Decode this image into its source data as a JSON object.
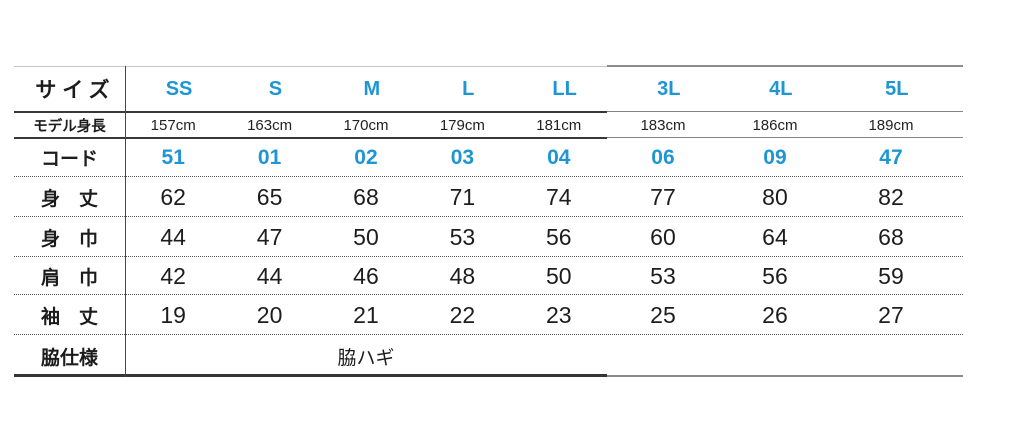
{
  "colors": {
    "accent_blue": "#1e96d4",
    "text_black": "#1c1c1c",
    "line_dark": "#383838",
    "line_light": "#8d8d8d"
  },
  "table": {
    "corner_label": "サイズ",
    "sizes": [
      "SS",
      "S",
      "M",
      "L",
      "LL",
      "3L",
      "4L",
      "5L"
    ],
    "model_height": {
      "label": "モデル身長",
      "values": [
        "157cm",
        "163cm",
        "170cm",
        "179cm",
        "181cm",
        "183cm",
        "186cm",
        "189cm"
      ]
    },
    "code": {
      "label": "コード",
      "values": [
        "51",
        "01",
        "02",
        "03",
        "04",
        "06",
        "09",
        "47"
      ]
    },
    "rows": [
      {
        "label": "身　丈",
        "values": [
          "62",
          "65",
          "68",
          "71",
          "74",
          "77",
          "80",
          "82"
        ]
      },
      {
        "label": "身　巾",
        "values": [
          "44",
          "47",
          "50",
          "53",
          "56",
          "60",
          "64",
          "68"
        ]
      },
      {
        "label": "肩　巾",
        "values": [
          "42",
          "44",
          "46",
          "48",
          "50",
          "53",
          "56",
          "59"
        ]
      },
      {
        "label": "袖　丈",
        "values": [
          "19",
          "20",
          "21",
          "22",
          "23",
          "25",
          "26",
          "27"
        ]
      }
    ],
    "side": {
      "label": "脇仕様",
      "value": "脇ハギ"
    }
  },
  "chart_data": {
    "type": "table",
    "title": "サイズ表 (apparel size chart)",
    "columns": [
      "サイズ",
      "SS",
      "S",
      "M",
      "L",
      "LL",
      "3L",
      "4L",
      "5L"
    ],
    "rows": [
      [
        "モデル身長",
        "157cm",
        "163cm",
        "170cm",
        "179cm",
        "181cm",
        "183cm",
        "186cm",
        "189cm"
      ],
      [
        "コード",
        "51",
        "01",
        "02",
        "03",
        "04",
        "06",
        "09",
        "47"
      ],
      [
        "身丈",
        "62",
        "65",
        "68",
        "71",
        "74",
        "77",
        "80",
        "82"
      ],
      [
        "身巾",
        "44",
        "47",
        "50",
        "53",
        "56",
        "60",
        "64",
        "68"
      ],
      [
        "肩巾",
        "42",
        "44",
        "46",
        "48",
        "50",
        "53",
        "56",
        "59"
      ],
      [
        "袖丈",
        "19",
        "20",
        "21",
        "22",
        "23",
        "25",
        "26",
        "27"
      ],
      [
        "脇仕様",
        "脇ハギ"
      ]
    ],
    "layout_hints": {
      "size_and_code_text_color": "#1e96d4",
      "sections": [
        "SS–LL (dark borders)",
        "3L–5L (light borders)"
      ],
      "row_separators": "dotted",
      "side_spec_spans_size_columns": true
    }
  }
}
